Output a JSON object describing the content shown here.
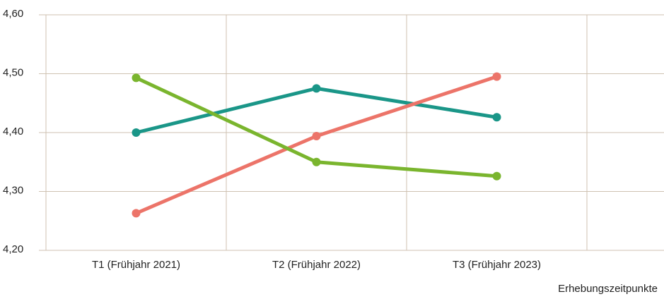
{
  "chart_data": {
    "type": "line",
    "categories": [
      "T1 (Frühjahr 2021)",
      "T2 (Frühjahr 2022)",
      "T3 (Frühjahr 2023)",
      null
    ],
    "series": [
      {
        "color": "#1a9688",
        "values": [
          4.4,
          4.475,
          4.426,
          null
        ]
      },
      {
        "color": "#ec7469",
        "values": [
          4.263,
          4.394,
          4.495,
          null
        ]
      },
      {
        "color": "#7ab52e",
        "values": [
          4.493,
          4.35,
          4.326,
          null
        ]
      }
    ],
    "x_label": "Erhebungszeitpunkte",
    "ylim": [
      4.2,
      4.6
    ],
    "yticks": [
      {
        "value": 4.2,
        "label": "4,20"
      },
      {
        "value": 4.3,
        "label": "4,30"
      },
      {
        "value": 4.4,
        "label": "4,40"
      },
      {
        "value": 4.5,
        "label": "4,50"
      },
      {
        "value": 4.6,
        "label": "4,60"
      }
    ],
    "grid": true
  }
}
